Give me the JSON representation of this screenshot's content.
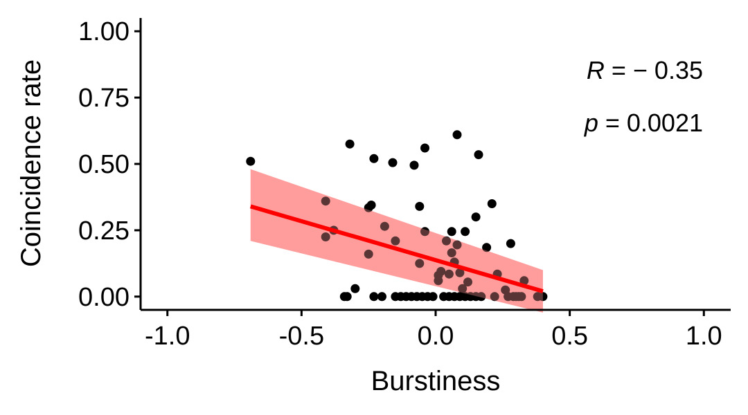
{
  "chart_data": {
    "type": "scatter",
    "xlabel": "Burstiness",
    "ylabel": "Coincidence rate",
    "xlim": [
      -1.1,
      1.1
    ],
    "ylim": [
      -0.05,
      1.05
    ],
    "xticks": [
      -1.0,
      -0.5,
      0.0,
      0.5,
      1.0
    ],
    "xtick_labels": [
      "-1.0",
      "-0.5",
      "0.0",
      "0.5",
      "1.0"
    ],
    "yticks": [
      0.0,
      0.25,
      0.5,
      0.75,
      1.0
    ],
    "ytick_labels": [
      "0.00",
      "0.25",
      "0.50",
      "0.75",
      "1.00"
    ],
    "grid": false,
    "colors": {
      "points": "#000000",
      "fit_line": "#ff0000",
      "ribbon": "#ff9999"
    },
    "annotations": {
      "r_symbol": "R",
      "r_value": " = − 0.35",
      "p_symbol": "p",
      "p_value": " = 0.0021"
    },
    "fit": {
      "x_range": [
        -0.69,
        0.4
      ],
      "y_start": 0.34,
      "y_end": 0.02,
      "ci_start": [
        0.21,
        0.48
      ],
      "ci_end": [
        -0.06,
        0.1
      ]
    },
    "points": [
      {
        "x": -0.69,
        "y": 0.51
      },
      {
        "x": -0.41,
        "y": 0.36
      },
      {
        "x": -0.41,
        "y": 0.225
      },
      {
        "x": -0.38,
        "y": 0.25
      },
      {
        "x": -0.34,
        "y": 0.0
      },
      {
        "x": -0.33,
        "y": 0.0
      },
      {
        "x": -0.32,
        "y": 0.575
      },
      {
        "x": -0.3,
        "y": 0.03
      },
      {
        "x": -0.25,
        "y": 0.335
      },
      {
        "x": -0.24,
        "y": 0.345
      },
      {
        "x": -0.25,
        "y": 0.16
      },
      {
        "x": -0.23,
        "y": 0.0
      },
      {
        "x": -0.23,
        "y": 0.52
      },
      {
        "x": -0.2,
        "y": 0.0
      },
      {
        "x": -0.19,
        "y": 0.265
      },
      {
        "x": -0.16,
        "y": 0.505
      },
      {
        "x": -0.15,
        "y": 0.21
      },
      {
        "x": -0.15,
        "y": 0.0
      },
      {
        "x": -0.13,
        "y": 0.0
      },
      {
        "x": -0.11,
        "y": 0.0
      },
      {
        "x": -0.09,
        "y": 0.0
      },
      {
        "x": -0.08,
        "y": 0.495
      },
      {
        "x": -0.07,
        "y": 0.0
      },
      {
        "x": -0.06,
        "y": 0.34
      },
      {
        "x": -0.06,
        "y": 0.125
      },
      {
        "x": -0.05,
        "y": 0.0
      },
      {
        "x": -0.04,
        "y": 0.56
      },
      {
        "x": -0.04,
        "y": 0.245
      },
      {
        "x": -0.03,
        "y": 0.0
      },
      {
        "x": -0.01,
        "y": 0.0
      },
      {
        "x": 0.01,
        "y": 0.06
      },
      {
        "x": 0.01,
        "y": 0.08
      },
      {
        "x": 0.02,
        "y": 0.095
      },
      {
        "x": 0.03,
        "y": 0.0
      },
      {
        "x": 0.04,
        "y": 0.21
      },
      {
        "x": 0.05,
        "y": 0.085
      },
      {
        "x": 0.05,
        "y": 0.0
      },
      {
        "x": 0.06,
        "y": 0.165
      },
      {
        "x": 0.06,
        "y": 0.245
      },
      {
        "x": 0.07,
        "y": 0.0
      },
      {
        "x": 0.07,
        "y": 0.13
      },
      {
        "x": 0.08,
        "y": 0.61
      },
      {
        "x": 0.08,
        "y": 0.195
      },
      {
        "x": 0.09,
        "y": 0.0
      },
      {
        "x": 0.09,
        "y": 0.09
      },
      {
        "x": 0.1,
        "y": 0.03
      },
      {
        "x": 0.11,
        "y": 0.0
      },
      {
        "x": 0.11,
        "y": 0.245
      },
      {
        "x": 0.12,
        "y": 0.055
      },
      {
        "x": 0.13,
        "y": 0.0
      },
      {
        "x": 0.15,
        "y": 0.3
      },
      {
        "x": 0.15,
        "y": 0.0
      },
      {
        "x": 0.16,
        "y": 0.535
      },
      {
        "x": 0.17,
        "y": 0.0
      },
      {
        "x": 0.19,
        "y": 0.185
      },
      {
        "x": 0.21,
        "y": 0.35
      },
      {
        "x": 0.22,
        "y": 0.0
      },
      {
        "x": 0.23,
        "y": 0.085
      },
      {
        "x": 0.26,
        "y": 0.025
      },
      {
        "x": 0.27,
        "y": 0.0
      },
      {
        "x": 0.28,
        "y": 0.2
      },
      {
        "x": 0.29,
        "y": 0.0
      },
      {
        "x": 0.3,
        "y": 0.0
      },
      {
        "x": 0.31,
        "y": 0.0
      },
      {
        "x": 0.32,
        "y": 0.0
      },
      {
        "x": 0.33,
        "y": 0.06
      },
      {
        "x": 0.38,
        "y": 0.0
      },
      {
        "x": 0.4,
        "y": 0.0
      }
    ]
  }
}
